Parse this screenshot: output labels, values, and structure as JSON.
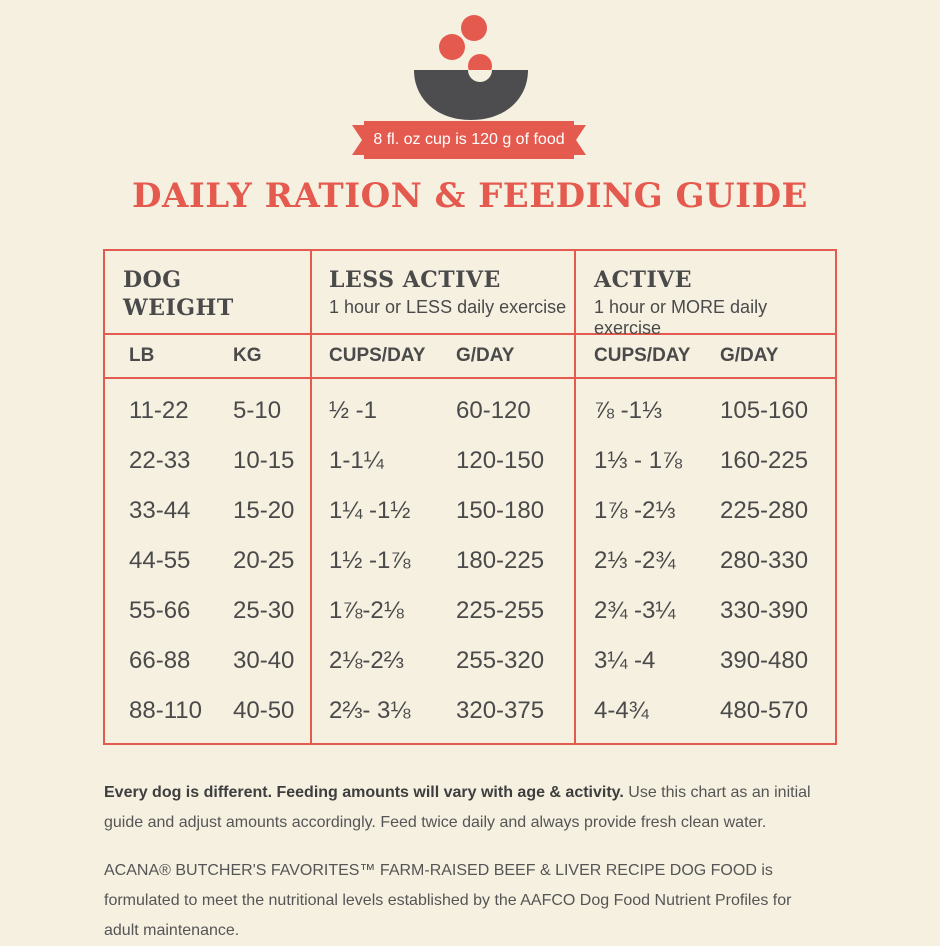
{
  "cup_note": "8 fl. oz cup is 120 g of food",
  "title": "DAILY RATION & FEEDING GUIDE",
  "header": {
    "dog_weight_line1": "DOG",
    "dog_weight_line2": "WEIGHT",
    "less_active": "LESS ACTIVE",
    "less_active_sub": "1 hour or LESS daily exercise",
    "active": "ACTIVE",
    "active_sub": "1 hour or MORE daily exercise",
    "lb": "LB",
    "kg": "KG",
    "cups_day_1": "CUPS/DAY",
    "g_day_1": "G/DAY",
    "cups_day_2": "CUPS/DAY",
    "g_day_2": "G/DAY"
  },
  "rows": [
    {
      "lb": "11-22",
      "kg": "5-10",
      "la_cups": "½ -1",
      "la_g": "60-120",
      "a_cups": "⅞ -1⅓",
      "a_g": "105-160"
    },
    {
      "lb": "22-33",
      "kg": "10-15",
      "la_cups": "1-1¼",
      "la_g": "120-150",
      "a_cups": "1⅓ - 1⅞",
      "a_g": "160-225"
    },
    {
      "lb": "33-44",
      "kg": "15-20",
      "la_cups": "1¼ -1½",
      "la_g": "150-180",
      "a_cups": "1⅞ -2⅓",
      "a_g": "225-280"
    },
    {
      "lb": "44-55",
      "kg": "20-25",
      "la_cups": "1½ -1⅞",
      "la_g": "180-225",
      "a_cups": "2⅓ -2¾",
      "a_g": "280-330"
    },
    {
      "lb": "55-66",
      "kg": "25-30",
      "la_cups": "1⅞-2⅛",
      "la_g": "225-255",
      "a_cups": "2¾ -3¼",
      "a_g": "330-390"
    },
    {
      "lb": "66-88",
      "kg": "30-40",
      "la_cups": "2⅛-2⅔",
      "la_g": "255-320",
      "a_cups": "3¼ -4",
      "a_g": "390-480"
    },
    {
      "lb": "88-110",
      "kg": "40-50",
      "la_cups": "2⅔- 3⅛",
      "la_g": "320-375",
      "a_cups": "4-4¾",
      "a_g": "480-570"
    }
  ],
  "footer": {
    "p1_bold": "Every dog is different. Feeding amounts will vary with age & activity.",
    "p1_rest": " Use this chart as an initial guide and adjust amounts accordingly. Feed twice daily and always provide fresh clean water.",
    "p2": "ACANA® BUTCHER'S FAVORITES™ FARM-RAISED BEEF & LIVER RECIPE DOG FOOD is formulated to meet the nutritional levels established by the AAFCO Dog Food Nutrient Profiles for adult maintenance."
  },
  "colors": {
    "accent": "#e55a4e",
    "background": "#f6f0e1",
    "text": "#4a4a4a",
    "bowl": "#4d4d4f"
  },
  "icons": [
    "food-bowl-icon"
  ]
}
